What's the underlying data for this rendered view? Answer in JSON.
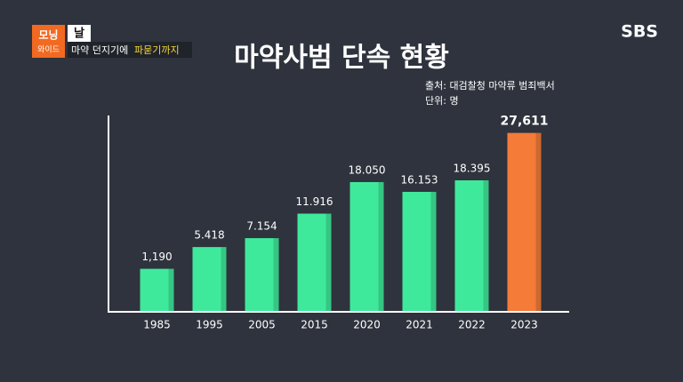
{
  "header": {
    "logo_top": "모닝",
    "logo_bottom": "와이드",
    "badge": "날",
    "caption": "마약 던지기에",
    "caption_highlight": "파묻기까지",
    "channel": "SBS"
  },
  "chart_data": {
    "type": "bar",
    "title": "마약사범 단속 현황",
    "source": "출처: 대검찰청 마약류 범죄백서",
    "unit": "단위: 명",
    "categories": [
      "1985",
      "1995",
      "2005",
      "2015",
      "2020",
      "2021",
      "2022",
      "2023"
    ],
    "values": [
      1190,
      5418,
      7154,
      11916,
      18050,
      16153,
      18395,
      27611
    ],
    "value_labels": [
      "1,190",
      "5.418",
      "7.154",
      "11.916",
      "18.050",
      "16.153",
      "18.395",
      "27,611"
    ],
    "colors": [
      "#3fe99b",
      "#3fe99b",
      "#3fe99b",
      "#3fe99b",
      "#3fe99b",
      "#3fe99b",
      "#3fe99b",
      "#f47b38"
    ],
    "ylim": [
      -7000,
      31000
    ]
  }
}
